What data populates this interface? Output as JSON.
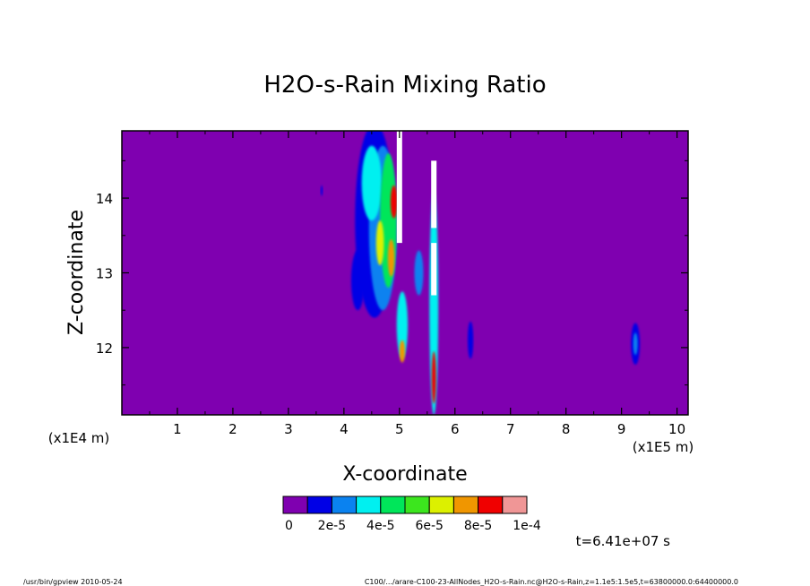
{
  "chart_data": {
    "type": "heatmap",
    "title": "H2O-s-Rain Mixing Ratio",
    "xlabel": "X-coordinate",
    "ylabel": "Z-coordinate",
    "x_scale_label": "(x1E5 m)",
    "y_scale_label": "(x1E4 m)",
    "xlim": [
      0,
      10.2
    ],
    "ylim": [
      11.1,
      14.9
    ],
    "x_ticks": [
      "1",
      "2",
      "3",
      "4",
      "5",
      "6",
      "7",
      "8",
      "9",
      "10"
    ],
    "y_ticks": [
      "12",
      "13",
      "14"
    ],
    "colorbar": {
      "colors": [
        "#7f00b0",
        "#0000e6",
        "#0a82f0",
        "#00f0f0",
        "#00e65a",
        "#3ce61e",
        "#dcf000",
        "#f09600",
        "#f00000",
        "#f09696"
      ],
      "labels": [
        "0",
        "2e-5",
        "4e-5",
        "6e-5",
        "8e-5",
        "1e-4"
      ]
    },
    "blobs": [
      {
        "x": 4.55,
        "y": 13.7,
        "rx": 0.35,
        "ry": 1.3,
        "level": 1
      },
      {
        "x": 4.7,
        "y": 13.6,
        "rx": 0.25,
        "ry": 1.1,
        "level": 2
      },
      {
        "x": 4.5,
        "y": 14.2,
        "rx": 0.18,
        "ry": 0.5,
        "level": 3
      },
      {
        "x": 4.8,
        "y": 13.7,
        "rx": 0.15,
        "ry": 0.9,
        "level": 4
      },
      {
        "x": 4.65,
        "y": 13.4,
        "rx": 0.07,
        "ry": 0.3,
        "level": 6
      },
      {
        "x": 4.85,
        "y": 13.2,
        "rx": 0.06,
        "ry": 0.25,
        "level": 7
      },
      {
        "x": 4.9,
        "y": 13.95,
        "rx": 0.06,
        "ry": 0.22,
        "level": 8
      },
      {
        "x": 5.05,
        "y": 12.3,
        "rx": 0.1,
        "ry": 0.45,
        "level": 3
      },
      {
        "x": 5.05,
        "y": 11.95,
        "rx": 0.05,
        "ry": 0.15,
        "level": 7
      },
      {
        "x": 4.25,
        "y": 12.9,
        "rx": 0.12,
        "ry": 0.4,
        "level": 1
      },
      {
        "x": 5.35,
        "y": 13.0,
        "rx": 0.08,
        "ry": 0.3,
        "level": 2
      },
      {
        "x": 5.62,
        "y": 12.6,
        "rx": 0.08,
        "ry": 1.5,
        "level": 3
      },
      {
        "x": 5.62,
        "y": 11.6,
        "rx": 0.04,
        "ry": 0.35,
        "level": 8
      },
      {
        "x": 6.28,
        "y": 12.1,
        "rx": 0.05,
        "ry": 0.25,
        "level": 1
      },
      {
        "x": 9.25,
        "y": 12.05,
        "rx": 0.08,
        "ry": 0.28,
        "level": 1
      },
      {
        "x": 9.25,
        "y": 12.05,
        "rx": 0.04,
        "ry": 0.15,
        "level": 2
      },
      {
        "x": 3.6,
        "y": 14.1,
        "rx": 0.02,
        "ry": 0.07,
        "level": 1
      }
    ],
    "white_columns": [
      {
        "x": 5.0,
        "y0": 13.4,
        "y1": 14.9
      },
      {
        "x": 5.62,
        "y0": 12.7,
        "y1": 13.4
      },
      {
        "x": 5.62,
        "y0": 13.6,
        "y1": 14.5
      }
    ]
  },
  "footer": {
    "time_label": "t=6.41e+07 s",
    "program_info": "/usr/bin/gpview  2010-05-24",
    "file_info": "C100/.../arare-C100-23-AllNodes_H2O-s-Rain.nc@H2O-s-Rain,z=1.1e5:1.5e5,t=63800000.0:64400000.0"
  }
}
